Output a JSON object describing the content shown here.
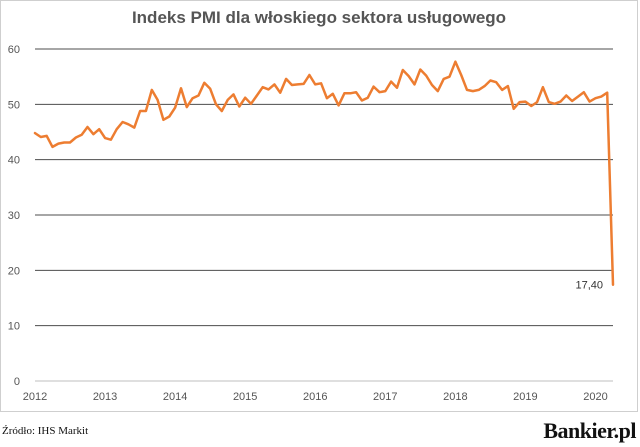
{
  "chart_data": {
    "type": "line",
    "title": "Indeks PMI dla włoskiego sektora usługowego",
    "xlabel": "",
    "ylabel": "",
    "x_ticks": [
      "2012",
      "2013",
      "2014",
      "2015",
      "2016",
      "2017",
      "2018",
      "2019",
      "2020"
    ],
    "y_ticks": [
      0,
      10,
      20,
      30,
      40,
      50,
      60
    ],
    "ylim": [
      0,
      60
    ],
    "xlim": [
      2012.0,
      2020.25
    ],
    "grid": true,
    "legend": "none",
    "line_color": "#ed7d31",
    "x_start": "2012-01",
    "values": [
      44.8,
      44.1,
      44.3,
      42.3,
      42.9,
      43.1,
      43.1,
      44.0,
      44.5,
      45.9,
      44.6,
      45.5,
      43.9,
      43.6,
      45.5,
      46.8,
      46.4,
      45.8,
      48.8,
      48.8,
      52.6,
      50.8,
      47.2,
      47.8,
      49.4,
      52.9,
      49.5,
      51.1,
      51.6,
      53.9,
      52.8,
      50.0,
      48.8,
      50.8,
      51.8,
      49.6,
      51.2,
      50.1,
      51.6,
      53.1,
      52.7,
      53.6,
      52.1,
      54.6,
      53.5,
      53.6,
      53.7,
      55.3,
      53.6,
      53.8,
      51.1,
      51.9,
      49.8,
      52.0,
      52.0,
      52.2,
      50.7,
      51.2,
      53.2,
      52.2,
      52.4,
      54.1,
      53.0,
      56.2,
      55.1,
      53.6,
      56.3,
      55.2,
      53.5,
      52.4,
      54.6,
      55.0,
      57.7,
      55.3,
      52.6,
      52.4,
      52.6,
      53.3,
      54.3,
      54.0,
      52.6,
      53.3,
      49.2,
      50.4,
      50.5,
      49.7,
      50.4,
      53.1,
      50.4,
      50.1,
      50.5,
      51.6,
      50.6,
      51.4,
      52.2,
      50.5,
      51.1,
      51.4,
      52.1,
      17.4
    ],
    "last_value_label": "17,40"
  },
  "source": "Źródło: IHS Markit",
  "logo": "Bankier.pl"
}
